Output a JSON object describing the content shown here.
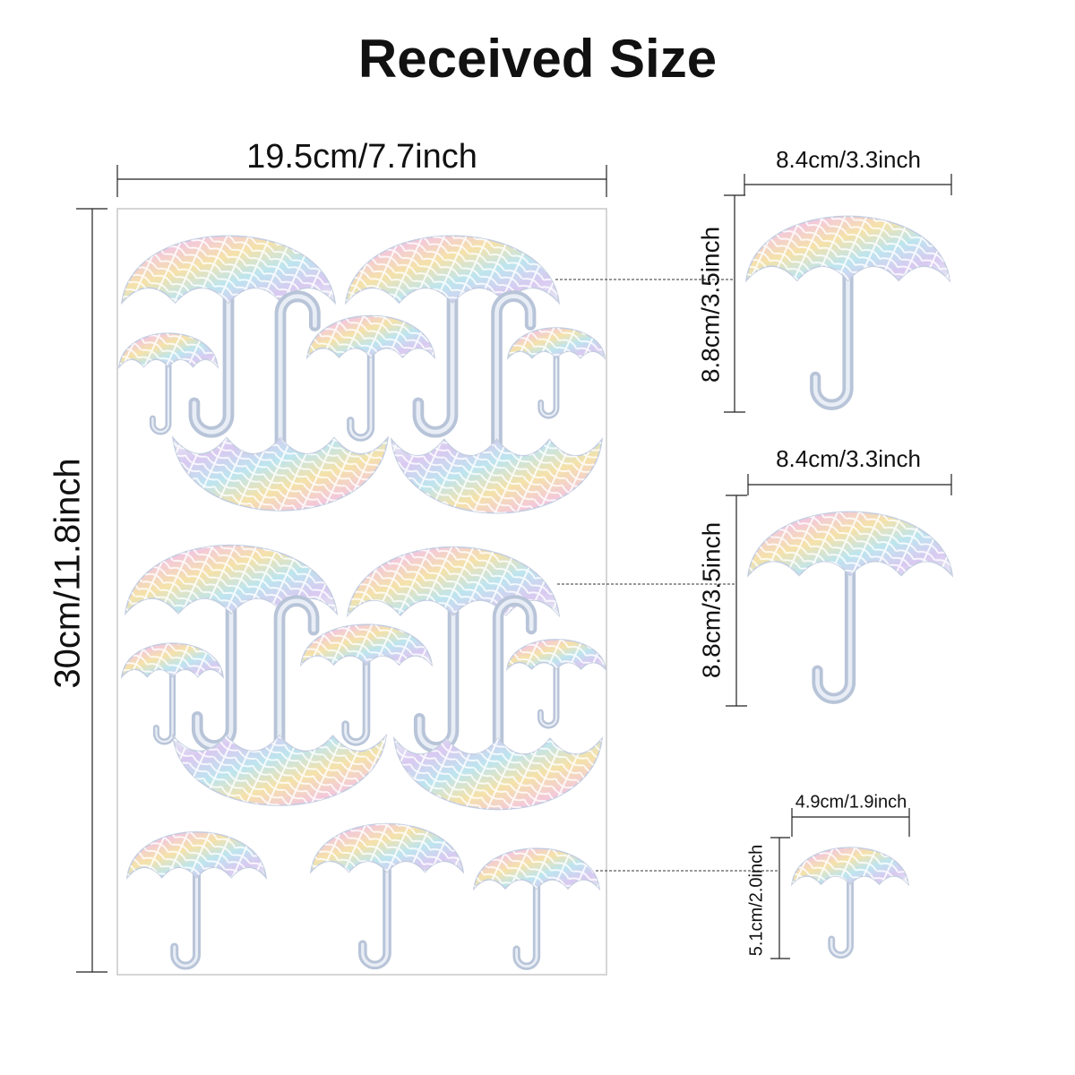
{
  "title": "Received Size",
  "sheet": {
    "width": "19.5cm/7.7inch",
    "height": "30cm/11.8inch"
  },
  "details": [
    {
      "width": "8.4cm/3.3inch",
      "height": "8.8cm/3.5inch"
    },
    {
      "width": "8.4cm/3.3inch",
      "height": "8.8cm/3.5inch"
    },
    {
      "width": "4.9cm/1.9inch",
      "height": "5.1cm/2.0inch"
    }
  ]
}
